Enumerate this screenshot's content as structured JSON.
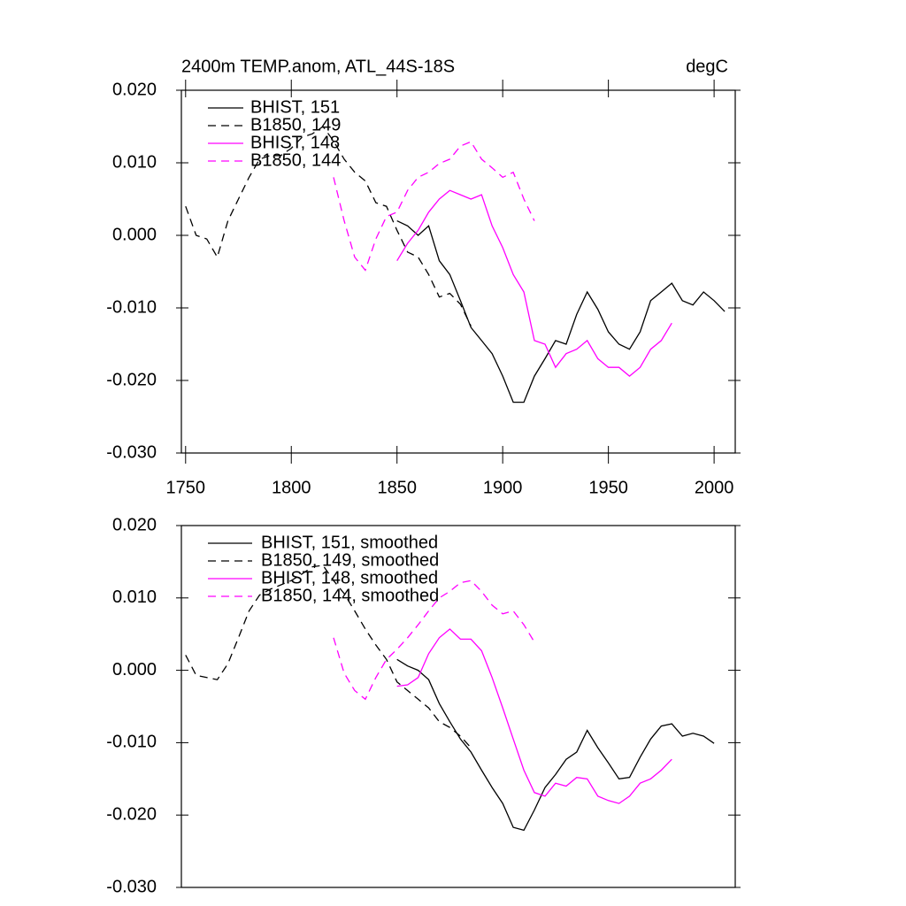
{
  "chart_data": [
    {
      "type": "line",
      "title": "2400m TEMP.anom, ATL_44S-18S",
      "units": "degC",
      "x": [
        1750,
        1755,
        1760,
        1765,
        1770,
        1775,
        1780,
        1785,
        1790,
        1795,
        1800,
        1805,
        1810,
        1815,
        1820,
        1825,
        1830,
        1835,
        1840,
        1845,
        1850,
        1855,
        1860,
        1865,
        1870,
        1875,
        1880,
        1885,
        1890,
        1895,
        1900,
        1905,
        1910,
        1915,
        1920,
        1925,
        1930,
        1935,
        1940,
        1945,
        1950,
        1955,
        1960,
        1965,
        1970,
        1975,
        1980,
        1985,
        1990,
        1995,
        2000,
        2005
      ],
      "series": [
        {
          "name": "BHIST, 151",
          "color": "#000000",
          "dash": false,
          "values": [
            null,
            null,
            null,
            null,
            null,
            null,
            null,
            null,
            null,
            null,
            null,
            null,
            null,
            null,
            null,
            null,
            null,
            null,
            null,
            null,
            0.002,
            0.0013,
            0.0,
            0.0013,
            -0.0035,
            -0.0054,
            -0.009,
            -0.0127,
            -0.0145,
            -0.0163,
            -0.0194,
            -0.023,
            -0.023,
            -0.0194,
            -0.017,
            -0.0145,
            -0.015,
            -0.0109,
            -0.0078,
            -0.0102,
            -0.0133,
            -0.015,
            -0.0157,
            -0.0133,
            -0.009,
            -0.0078,
            -0.0066,
            -0.009,
            -0.0096,
            -0.0078,
            -0.009,
            -0.0105
          ]
        },
        {
          "name": "B1850, 149",
          "color": "#000000",
          "dash": true,
          "values": [
            0.004,
            0.0,
            -0.0005,
            -0.003,
            0.002,
            0.005,
            0.008,
            0.0105,
            0.011,
            0.011,
            0.012,
            0.0135,
            0.014,
            0.015,
            0.013,
            0.0105,
            0.0087,
            0.0075,
            0.0045,
            0.004,
            0.0007,
            -0.0023,
            -0.003,
            -0.0054,
            -0.0085,
            -0.008,
            -0.0095,
            -0.0125,
            null,
            null,
            null,
            null,
            null,
            null,
            null,
            null,
            null,
            null,
            null,
            null,
            null,
            null,
            null,
            null,
            null,
            null,
            null,
            null,
            null,
            null,
            null,
            null
          ]
        },
        {
          "name": "BHIST, 148",
          "color": "#ff00ff",
          "dash": false,
          "values": [
            null,
            null,
            null,
            null,
            null,
            null,
            null,
            null,
            null,
            null,
            null,
            null,
            null,
            null,
            null,
            null,
            null,
            null,
            null,
            null,
            -0.0035,
            -0.0011,
            0.0007,
            0.0032,
            0.005,
            0.0062,
            0.0056,
            0.005,
            0.0056,
            0.0013,
            -0.0017,
            -0.0054,
            -0.0078,
            -0.0145,
            -0.015,
            -0.0182,
            -0.0163,
            -0.0157,
            -0.0145,
            -0.017,
            -0.0182,
            -0.0182,
            -0.0194,
            -0.0182,
            -0.0157,
            -0.0145,
            -0.0121,
            null,
            null,
            null,
            null,
            null
          ]
        },
        {
          "name": "B1850, 144",
          "color": "#ff00ff",
          "dash": true,
          "values": [
            null,
            null,
            null,
            null,
            null,
            null,
            null,
            null,
            null,
            null,
            null,
            null,
            null,
            null,
            0.008,
            0.002,
            -0.003,
            -0.0048,
            -0.0005,
            0.0026,
            0.0032,
            0.0062,
            0.008,
            0.0087,
            0.0099,
            0.0105,
            0.0123,
            0.0129,
            0.0105,
            0.0093,
            0.008,
            0.0087,
            0.005,
            0.002,
            null,
            null,
            null,
            null,
            null,
            null,
            null,
            null,
            null,
            null,
            null,
            null,
            null,
            null,
            null,
            null,
            null,
            null
          ]
        }
      ],
      "xlim": [
        1748,
        2010
      ],
      "xticks": [
        1750,
        1800,
        1850,
        1900,
        1950,
        2000
      ],
      "ylim": [
        -0.03,
        0.02
      ],
      "yticks": [
        {
          "value": -0.03,
          "label": "-0.030"
        },
        {
          "value": -0.02,
          "label": "-0.020"
        },
        {
          "value": -0.01,
          "label": "-0.010"
        },
        {
          "value": 0,
          "label": "0.000"
        },
        {
          "value": 0.01,
          "label": "0.010"
        },
        {
          "value": 0.02,
          "label": "0.020"
        }
      ],
      "legend": "upper-left"
    },
    {
      "type": "line",
      "x": [
        1750,
        1755,
        1760,
        1765,
        1770,
        1775,
        1780,
        1785,
        1790,
        1795,
        1800,
        1805,
        1810,
        1815,
        1820,
        1825,
        1830,
        1835,
        1840,
        1845,
        1850,
        1855,
        1860,
        1865,
        1870,
        1875,
        1880,
        1885,
        1890,
        1895,
        1900,
        1905,
        1910,
        1915,
        1920,
        1925,
        1930,
        1935,
        1940,
        1945,
        1950,
        1955,
        1960,
        1965,
        1970,
        1975,
        1980,
        1985,
        1990,
        1995,
        2000,
        2005
      ],
      "series": [
        {
          "name": "BHIST, 151, smoothed",
          "color": "#000000",
          "dash": false,
          "values": [
            null,
            null,
            null,
            null,
            null,
            null,
            null,
            null,
            null,
            null,
            null,
            null,
            null,
            null,
            null,
            null,
            null,
            null,
            null,
            null,
            0.0015,
            0.0006,
            0.0,
            -0.0013,
            -0.0046,
            -0.0071,
            -0.0095,
            -0.0113,
            -0.0138,
            -0.0162,
            -0.0184,
            -0.0217,
            -0.0221,
            -0.0193,
            -0.0162,
            -0.0144,
            -0.0123,
            -0.0113,
            -0.0083,
            -0.0107,
            -0.0128,
            -0.015,
            -0.0148,
            -0.012,
            -0.0095,
            -0.0077,
            -0.0074,
            -0.0091,
            -0.0087,
            -0.0091,
            -0.0101,
            null
          ]
        },
        {
          "name": "B1850, 149, smoothed",
          "color": "#000000",
          "dash": true,
          "values": [
            0.0021,
            -0.0007,
            -0.001,
            -0.0013,
            0.0009,
            0.0045,
            0.0082,
            0.0104,
            0.0112,
            0.0118,
            0.0124,
            0.0133,
            0.0143,
            0.0145,
            0.0124,
            0.0106,
            0.0082,
            0.0057,
            0.0035,
            0.0015,
            -0.0016,
            -0.0028,
            -0.004,
            -0.0052,
            -0.0071,
            -0.0079,
            -0.0091,
            -0.0107,
            null,
            null,
            null,
            null,
            null,
            null,
            null,
            null,
            null,
            null,
            null,
            null,
            null,
            null,
            null,
            null,
            null,
            null,
            null,
            null,
            null,
            null,
            null,
            null
          ]
        },
        {
          "name": "BHIST, 148, smoothed",
          "color": "#ff00ff",
          "dash": false,
          "values": [
            null,
            null,
            null,
            null,
            null,
            null,
            null,
            null,
            null,
            null,
            null,
            null,
            null,
            null,
            null,
            null,
            null,
            null,
            null,
            null,
            -0.0022,
            -0.002,
            -0.001,
            0.0023,
            0.0045,
            0.0057,
            0.0043,
            0.0043,
            0.0027,
            -0.001,
            -0.0052,
            -0.0095,
            -0.0138,
            -0.0169,
            -0.0174,
            -0.0156,
            -0.016,
            -0.0148,
            -0.015,
            -0.0174,
            -0.018,
            -0.0184,
            -0.0174,
            -0.0156,
            -0.015,
            -0.0138,
            -0.0123,
            null,
            null,
            null,
            null,
            null
          ]
        },
        {
          "name": "B1850, 144, smoothed",
          "color": "#ff00ff",
          "dash": true,
          "values": [
            null,
            null,
            null,
            null,
            null,
            null,
            null,
            null,
            null,
            null,
            null,
            null,
            null,
            null,
            0.0045,
            -0.0004,
            -0.0028,
            -0.004,
            -0.001,
            0.0015,
            0.0029,
            0.0045,
            0.0063,
            0.0082,
            0.01,
            0.0109,
            0.0121,
            0.0124,
            0.0109,
            0.009,
            0.0078,
            0.0082,
            0.0063,
            0.0039,
            null,
            null,
            null,
            null,
            null,
            null,
            null,
            null,
            null,
            null,
            null,
            null,
            null,
            null,
            null,
            null,
            null,
            null
          ]
        }
      ],
      "xlim": [
        1748,
        2010
      ],
      "ylim": [
        -0.03,
        0.02
      ],
      "yticks": [
        {
          "value": -0.03,
          "label": "-0.030"
        },
        {
          "value": -0.02,
          "label": "-0.020"
        },
        {
          "value": -0.01,
          "label": "-0.010"
        },
        {
          "value": 0,
          "label": "0.000"
        },
        {
          "value": 0.01,
          "label": "0.010"
        },
        {
          "value": 0.02,
          "label": "0.020"
        }
      ],
      "legend": "upper-left"
    }
  ]
}
